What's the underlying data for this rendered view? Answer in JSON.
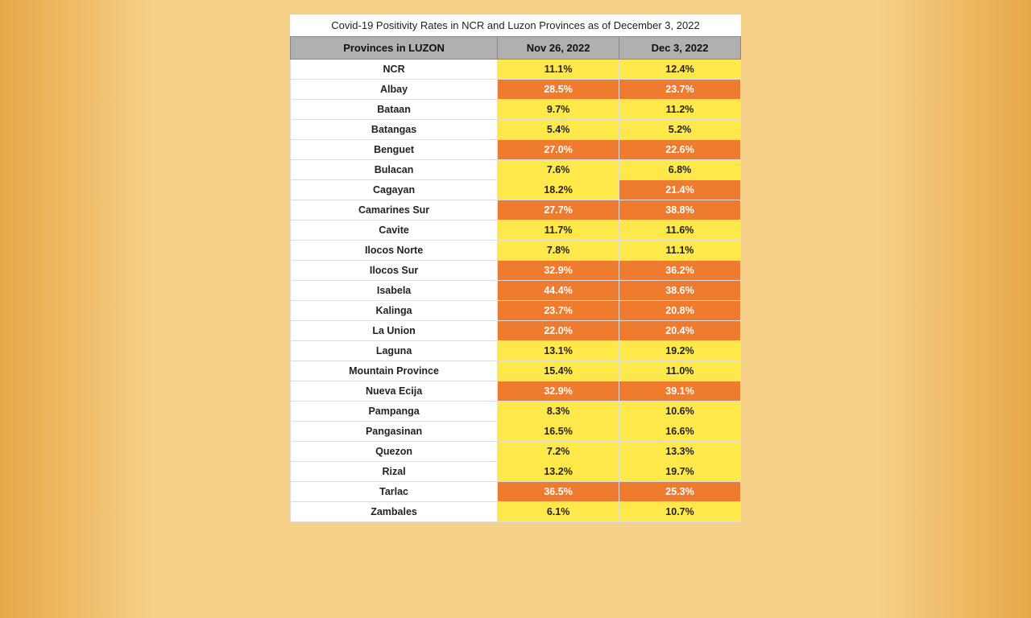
{
  "title": "Covid-19 Positivity Rates in NCR and Luzon Provinces as of December 3, 2022",
  "columns": [
    "Provinces in LUZON",
    "Nov 26, 2022",
    "Dec 3, 2022"
  ],
  "colors": {
    "header_bg": "#b0b0b0",
    "yellow": "#ffe94a",
    "orange": "#ee7b2e",
    "page_gradient_edge": "#e8a848",
    "page_gradient_mid": "#f5d089",
    "white": "#ffffff"
  },
  "font": {
    "family": "Arial",
    "title_size_pt": 13,
    "header_size_pt": 13,
    "cell_size_pt": 12
  },
  "rows": [
    {
      "province": "NCR",
      "nov": "11.1%",
      "nov_c": "yellow",
      "dec": "12.4%",
      "dec_c": "yellow"
    },
    {
      "province": "Albay",
      "nov": "28.5%",
      "nov_c": "orange",
      "dec": "23.7%",
      "dec_c": "orange"
    },
    {
      "province": "Bataan",
      "nov": "9.7%",
      "nov_c": "yellow",
      "dec": "11.2%",
      "dec_c": "yellow"
    },
    {
      "province": "Batangas",
      "nov": "5.4%",
      "nov_c": "yellow",
      "dec": "5.2%",
      "dec_c": "yellow"
    },
    {
      "province": "Benguet",
      "nov": "27.0%",
      "nov_c": "orange",
      "dec": "22.6%",
      "dec_c": "orange"
    },
    {
      "province": "Bulacan",
      "nov": "7.6%",
      "nov_c": "yellow",
      "dec": "6.8%",
      "dec_c": "yellow"
    },
    {
      "province": "Cagayan",
      "nov": "18.2%",
      "nov_c": "yellow",
      "dec": "21.4%",
      "dec_c": "orange"
    },
    {
      "province": "Camarines Sur",
      "nov": "27.7%",
      "nov_c": "orange",
      "dec": "38.8%",
      "dec_c": "orange"
    },
    {
      "province": "Cavite",
      "nov": "11.7%",
      "nov_c": "yellow",
      "dec": "11.6%",
      "dec_c": "yellow"
    },
    {
      "province": "Ilocos Norte",
      "nov": "7.8%",
      "nov_c": "yellow",
      "dec": "11.1%",
      "dec_c": "yellow"
    },
    {
      "province": "Ilocos Sur",
      "nov": "32.9%",
      "nov_c": "orange",
      "dec": "36.2%",
      "dec_c": "orange"
    },
    {
      "province": "Isabela",
      "nov": "44.4%",
      "nov_c": "orange",
      "dec": "38.6%",
      "dec_c": "orange"
    },
    {
      "province": "Kalinga",
      "nov": "23.7%",
      "nov_c": "orange",
      "dec": "20.8%",
      "dec_c": "orange"
    },
    {
      "province": "La Union",
      "nov": "22.0%",
      "nov_c": "orange",
      "dec": "20.4%",
      "dec_c": "orange"
    },
    {
      "province": "Laguna",
      "nov": "13.1%",
      "nov_c": "yellow",
      "dec": "19.2%",
      "dec_c": "yellow"
    },
    {
      "province": "Mountain Province",
      "nov": "15.4%",
      "nov_c": "yellow",
      "dec": "11.0%",
      "dec_c": "yellow"
    },
    {
      "province": "Nueva Ecija",
      "nov": "32.9%",
      "nov_c": "orange",
      "dec": "39.1%",
      "dec_c": "orange"
    },
    {
      "province": "Pampanga",
      "nov": "8.3%",
      "nov_c": "yellow",
      "dec": "10.6%",
      "dec_c": "yellow"
    },
    {
      "province": "Pangasinan",
      "nov": "16.5%",
      "nov_c": "yellow",
      "dec": "16.6%",
      "dec_c": "yellow"
    },
    {
      "province": "Quezon",
      "nov": "7.2%",
      "nov_c": "yellow",
      "dec": "13.3%",
      "dec_c": "yellow"
    },
    {
      "province": "Rizal",
      "nov": "13.2%",
      "nov_c": "yellow",
      "dec": "19.7%",
      "dec_c": "yellow"
    },
    {
      "province": "Tarlac",
      "nov": "36.5%",
      "nov_c": "orange",
      "dec": "25.3%",
      "dec_c": "orange"
    },
    {
      "province": "Zambales",
      "nov": "6.1%",
      "nov_c": "yellow",
      "dec": "10.7%",
      "dec_c": "yellow"
    }
  ]
}
